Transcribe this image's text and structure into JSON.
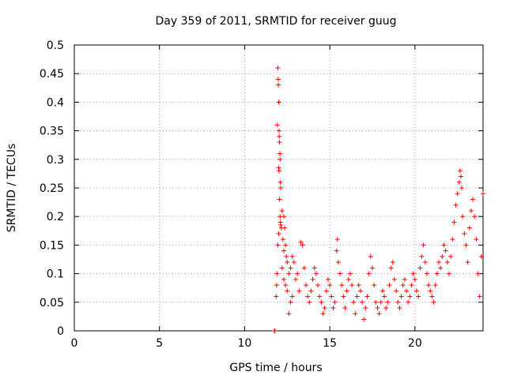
{
  "chart_data": {
    "type": "scatter",
    "title": "Day 359 of 2011, SRMTID for receiver guug",
    "xlabel": "GPS time / hours",
    "ylabel": "SRMTID / TECUs",
    "xlim": [
      0,
      24
    ],
    "ylim": [
      0,
      0.5
    ],
    "xticks": [
      0,
      5,
      10,
      15,
      20
    ],
    "yticks": [
      0,
      0.05,
      0.1,
      0.15,
      0.2,
      0.25,
      0.3,
      0.35,
      0.4,
      0.45,
      0.5
    ],
    "xtick_labels": [
      "0",
      "5",
      "10",
      "15",
      "20"
    ],
    "ytick_labels": [
      "0",
      "0.05",
      "0.1",
      "0.15",
      "0.2",
      "0.25",
      "0.3",
      "0.35",
      "0.4",
      "0.45",
      "0.5"
    ],
    "grid": true,
    "marker": "+",
    "color": "#ff0000",
    "series": [
      {
        "points": [
          [
            11.75,
            0.0
          ],
          [
            11.78,
            0.0
          ],
          [
            11.85,
            0.06
          ],
          [
            11.88,
            0.08
          ],
          [
            11.9,
            0.1
          ],
          [
            11.92,
            0.36
          ],
          [
            11.95,
            0.46
          ],
          [
            11.97,
            0.44
          ],
          [
            11.98,
            0.43
          ],
          [
            12.0,
            0.4
          ],
          [
            12.01,
            0.4
          ],
          [
            12.02,
            0.35
          ],
          [
            12.03,
            0.34
          ],
          [
            12.05,
            0.33
          ],
          [
            12.07,
            0.31
          ],
          [
            12.08,
            0.3
          ],
          [
            12.0,
            0.285
          ],
          [
            12.02,
            0.28
          ],
          [
            12.1,
            0.26
          ],
          [
            12.12,
            0.25
          ],
          [
            12.05,
            0.23
          ],
          [
            12.08,
            0.2
          ],
          [
            12.1,
            0.19
          ],
          [
            12.12,
            0.185
          ],
          [
            12.15,
            0.18
          ],
          [
            12.0,
            0.17
          ],
          [
            11.95,
            0.15
          ],
          [
            12.2,
            0.21
          ],
          [
            12.3,
            0.2
          ],
          [
            12.35,
            0.18
          ],
          [
            12.25,
            0.16
          ],
          [
            12.3,
            0.14
          ],
          [
            12.4,
            0.15
          ],
          [
            12.45,
            0.13
          ],
          [
            12.5,
            0.12
          ],
          [
            12.2,
            0.11
          ],
          [
            12.3,
            0.09
          ],
          [
            12.4,
            0.08
          ],
          [
            12.5,
            0.07
          ],
          [
            12.6,
            0.1
          ],
          [
            12.7,
            0.11
          ],
          [
            12.8,
            0.13
          ],
          [
            12.9,
            0.12
          ],
          [
            13.0,
            0.09
          ],
          [
            13.1,
            0.1
          ],
          [
            12.6,
            0.03
          ],
          [
            12.7,
            0.05
          ],
          [
            12.8,
            0.06
          ],
          [
            13.2,
            0.07
          ],
          [
            13.3,
            0.155
          ],
          [
            13.4,
            0.15
          ],
          [
            13.5,
            0.11
          ],
          [
            13.6,
            0.08
          ],
          [
            13.7,
            0.06
          ],
          [
            13.8,
            0.05
          ],
          [
            13.9,
            0.07
          ],
          [
            14.0,
            0.09
          ],
          [
            14.1,
            0.11
          ],
          [
            14.2,
            0.1
          ],
          [
            14.3,
            0.08
          ],
          [
            14.4,
            0.06
          ],
          [
            14.5,
            0.05
          ],
          [
            14.6,
            0.03
          ],
          [
            14.7,
            0.04
          ],
          [
            14.8,
            0.07
          ],
          [
            14.9,
            0.09
          ],
          [
            15.0,
            0.08
          ],
          [
            15.1,
            0.06
          ],
          [
            15.2,
            0.04
          ],
          [
            15.3,
            0.05
          ],
          [
            15.4,
            0.14
          ],
          [
            15.45,
            0.16
          ],
          [
            15.5,
            0.12
          ],
          [
            15.6,
            0.1
          ],
          [
            15.7,
            0.08
          ],
          [
            15.8,
            0.06
          ],
          [
            15.9,
            0.04
          ],
          [
            16.0,
            0.07
          ],
          [
            16.1,
            0.09
          ],
          [
            16.2,
            0.1
          ],
          [
            16.3,
            0.08
          ],
          [
            16.4,
            0.05
          ],
          [
            16.5,
            0.03
          ],
          [
            16.6,
            0.06
          ],
          [
            16.7,
            0.08
          ],
          [
            16.8,
            0.07
          ],
          [
            16.9,
            0.05
          ],
          [
            17.0,
            0.02
          ],
          [
            17.1,
            0.04
          ],
          [
            17.2,
            0.06
          ],
          [
            17.3,
            0.1
          ],
          [
            17.4,
            0.13
          ],
          [
            17.5,
            0.11
          ],
          [
            17.6,
            0.08
          ],
          [
            17.7,
            0.05
          ],
          [
            17.8,
            0.04
          ],
          [
            17.9,
            0.03
          ],
          [
            18.0,
            0.05
          ],
          [
            18.1,
            0.07
          ],
          [
            18.2,
            0.06
          ],
          [
            18.3,
            0.04
          ],
          [
            18.4,
            0.05
          ],
          [
            18.5,
            0.08
          ],
          [
            18.6,
            0.11
          ],
          [
            18.7,
            0.12
          ],
          [
            18.8,
            0.09
          ],
          [
            18.9,
            0.07
          ],
          [
            19.0,
            0.05
          ],
          [
            19.1,
            0.04
          ],
          [
            19.2,
            0.06
          ],
          [
            19.3,
            0.08
          ],
          [
            19.4,
            0.09
          ],
          [
            19.5,
            0.07
          ],
          [
            19.6,
            0.05
          ],
          [
            19.7,
            0.06
          ],
          [
            19.8,
            0.08
          ],
          [
            19.9,
            0.1
          ],
          [
            20.0,
            0.09
          ],
          [
            20.1,
            0.07
          ],
          [
            20.2,
            0.06
          ],
          [
            20.3,
            0.11
          ],
          [
            20.4,
            0.13
          ],
          [
            20.5,
            0.15
          ],
          [
            20.6,
            0.12
          ],
          [
            20.7,
            0.1
          ],
          [
            20.8,
            0.08
          ],
          [
            20.9,
            0.07
          ],
          [
            21.0,
            0.06
          ],
          [
            21.1,
            0.05
          ],
          [
            21.2,
            0.08
          ],
          [
            21.3,
            0.1
          ],
          [
            21.4,
            0.12
          ],
          [
            21.5,
            0.11
          ],
          [
            21.6,
            0.13
          ],
          [
            21.7,
            0.15
          ],
          [
            21.8,
            0.14
          ],
          [
            21.9,
            0.12
          ],
          [
            22.0,
            0.1
          ],
          [
            22.1,
            0.13
          ],
          [
            22.2,
            0.16
          ],
          [
            22.3,
            0.19
          ],
          [
            22.4,
            0.22
          ],
          [
            22.5,
            0.24
          ],
          [
            22.6,
            0.26
          ],
          [
            22.65,
            0.28
          ],
          [
            22.7,
            0.27
          ],
          [
            22.75,
            0.25
          ],
          [
            22.8,
            0.2
          ],
          [
            22.9,
            0.17
          ],
          [
            23.0,
            0.15
          ],
          [
            23.1,
            0.12
          ],
          [
            23.2,
            0.18
          ],
          [
            23.3,
            0.21
          ],
          [
            23.4,
            0.23
          ],
          [
            23.5,
            0.2
          ],
          [
            23.6,
            0.16
          ],
          [
            23.7,
            0.1
          ],
          [
            23.8,
            0.06
          ],
          [
            23.9,
            0.13
          ],
          [
            24.0,
            0.24
          ]
        ]
      }
    ]
  }
}
